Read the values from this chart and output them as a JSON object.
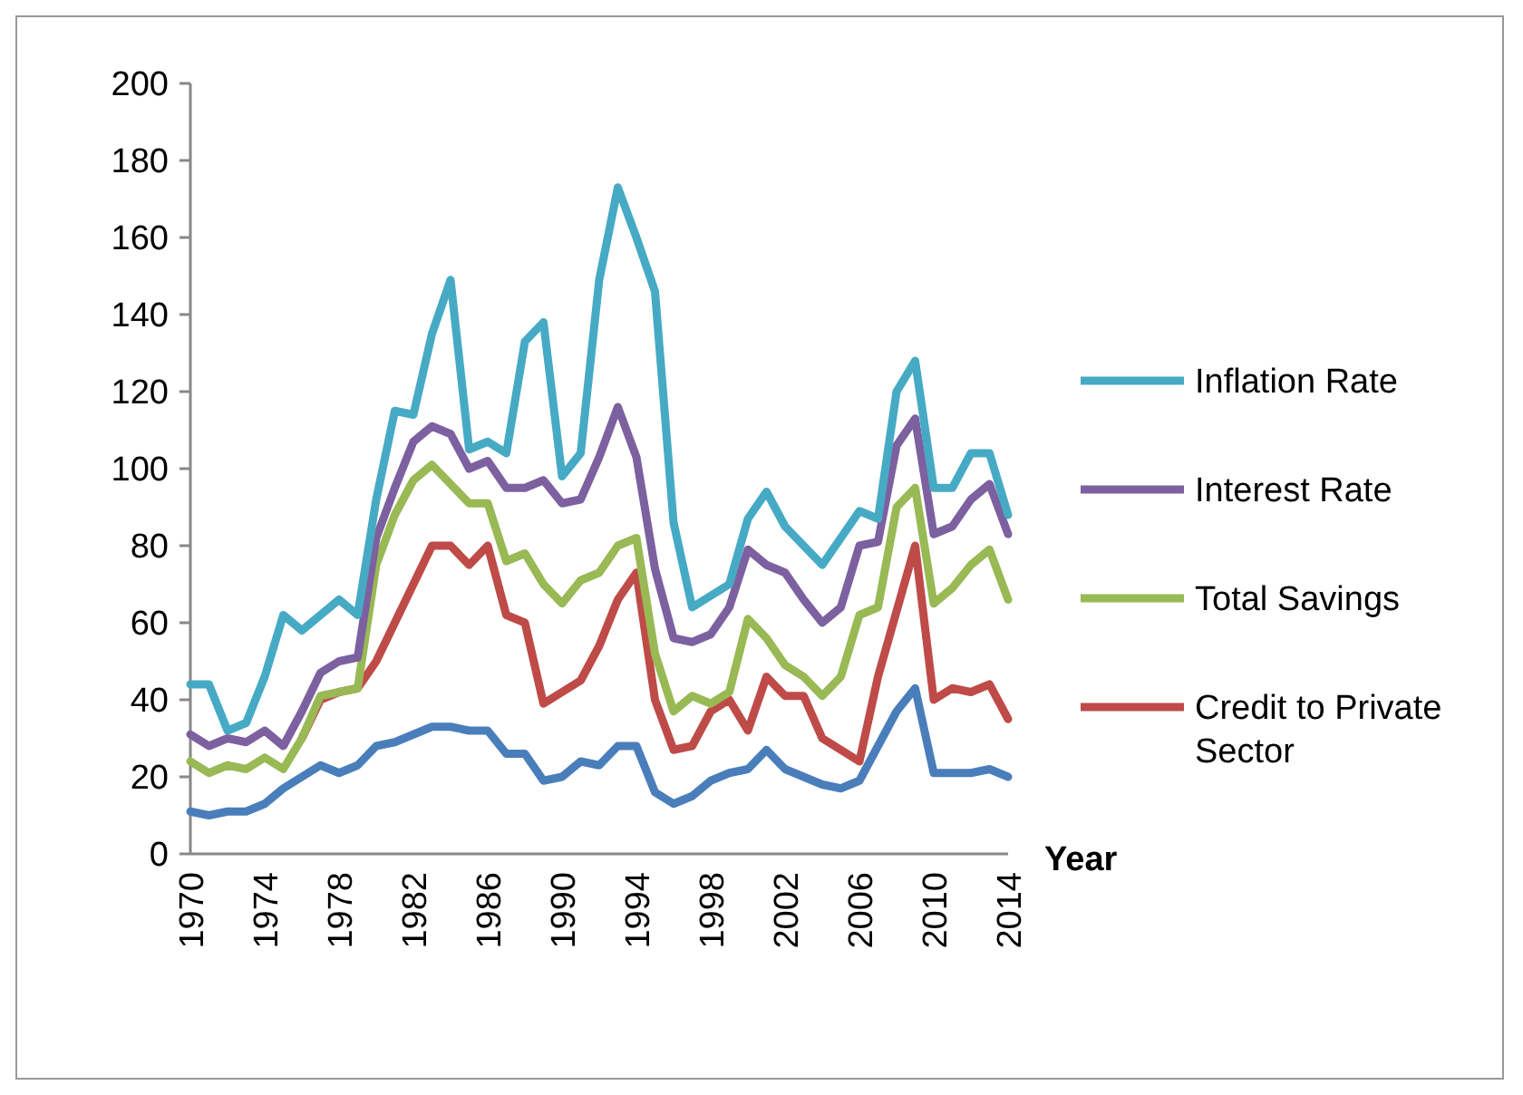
{
  "chart_data": {
    "type": "line",
    "xlabel": "Year",
    "categories": [
      "1970",
      null,
      null,
      null,
      "1974",
      null,
      null,
      null,
      "1978",
      null,
      null,
      null,
      "1982",
      null,
      null,
      null,
      "1986",
      null,
      null,
      null,
      "1990",
      null,
      null,
      null,
      "1994",
      null,
      null,
      null,
      "1998",
      null,
      null,
      null,
      "2002",
      null,
      null,
      null,
      "2006",
      null,
      null,
      null,
      "2010",
      null,
      null,
      null,
      "2014"
    ],
    "ylim": [
      0,
      200
    ],
    "yticks": [
      0,
      20,
      40,
      60,
      80,
      100,
      120,
      140,
      160,
      180,
      200
    ],
    "grid": false,
    "legend": "right",
    "line_style": "solid",
    "series": [
      {
        "color": "#4a7ebb",
        "values": [
          11,
          10,
          11,
          11,
          13,
          17,
          20,
          23,
          21,
          23,
          28,
          29,
          31,
          33,
          33,
          32,
          32,
          26,
          26,
          19,
          20,
          24,
          23,
          28,
          28,
          16,
          13,
          15,
          19,
          21,
          22,
          27,
          22,
          20,
          18,
          17,
          19,
          28,
          37,
          43,
          21,
          21,
          21,
          22,
          20
        ]
      },
      {
        "name": "Credit to Private Sector",
        "color": "#be4b48",
        "values": [
          null,
          null,
          null,
          null,
          null,
          null,
          30,
          40,
          42,
          43,
          50,
          60,
          70,
          80,
          80,
          75,
          80,
          62,
          60,
          39,
          42,
          45,
          54,
          66,
          73,
          40,
          27,
          28,
          37,
          40,
          32,
          46,
          41,
          41,
          30,
          27,
          24,
          46,
          63,
          80,
          40,
          43,
          42,
          44,
          35
        ]
      },
      {
        "name": "Total Savings",
        "color": "#98b954",
        "values": [
          24,
          21,
          23,
          22,
          25,
          22,
          30,
          41,
          42,
          43,
          75,
          88,
          97,
          101,
          96,
          91,
          91,
          76,
          78,
          70,
          65,
          71,
          73,
          80,
          82,
          52,
          37,
          41,
          39,
          42,
          61,
          56,
          49,
          46,
          41,
          46,
          62,
          64,
          90,
          95,
          65,
          69,
          75,
          79,
          66
        ]
      },
      {
        "name": "Interest Rate",
        "color": "#7d60a0",
        "values": [
          31,
          28,
          30,
          29,
          32,
          28,
          37,
          47,
          50,
          51,
          82,
          95,
          107,
          111,
          109,
          100,
          102,
          95,
          95,
          97,
          91,
          92,
          103,
          116,
          103,
          74,
          56,
          55,
          57,
          64,
          79,
          75,
          73,
          66,
          60,
          64,
          80,
          81,
          106,
          113,
          83,
          85,
          92,
          96,
          83
        ]
      },
      {
        "name": "Inflation Rate",
        "color": "#46aac5",
        "values": [
          44,
          44,
          32,
          34,
          46,
          62,
          58,
          62,
          66,
          62,
          92,
          115,
          114,
          135,
          149,
          105,
          107,
          104,
          133,
          138,
          98,
          104,
          149,
          173,
          160,
          146,
          86,
          64,
          67,
          70,
          87,
          94,
          85,
          80,
          75,
          82,
          89,
          87,
          120,
          128,
          95,
          95,
          104,
          104,
          88
        ]
      }
    ]
  }
}
